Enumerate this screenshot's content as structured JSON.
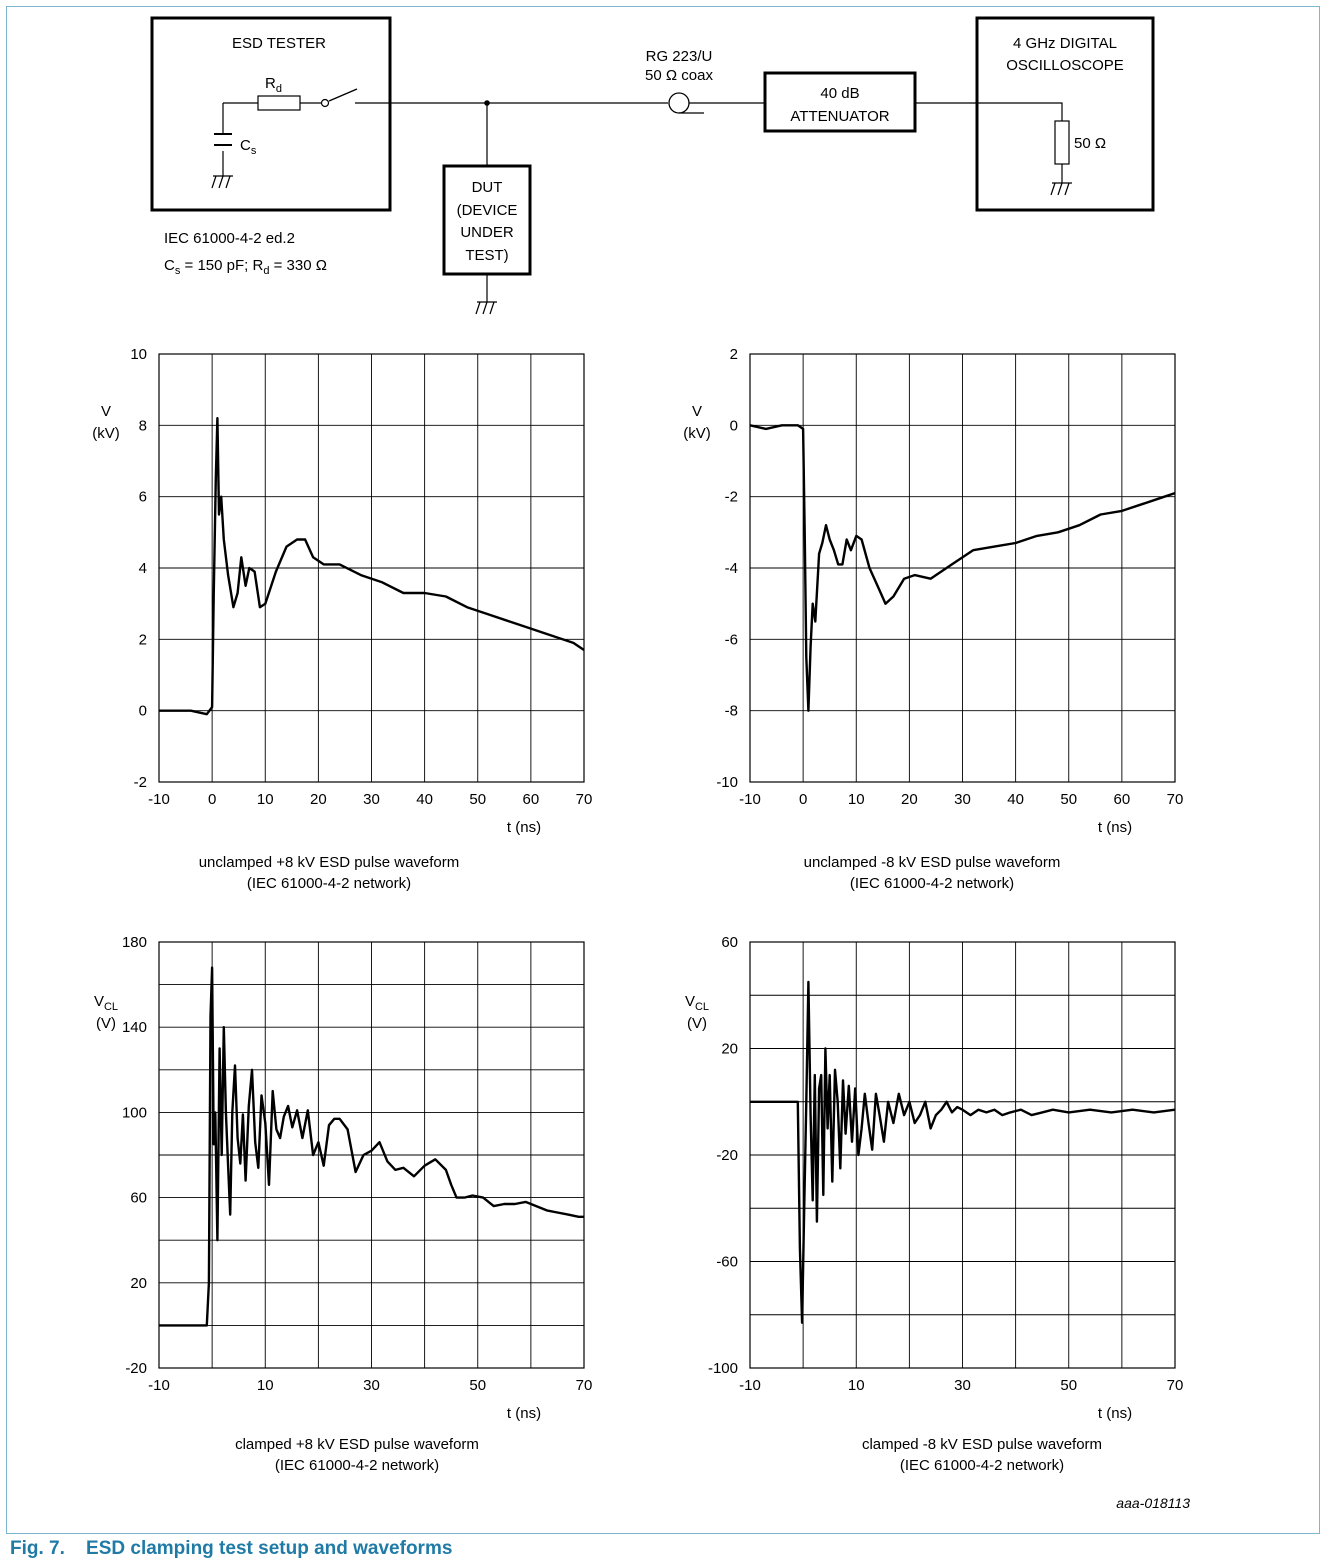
{
  "setup": {
    "tester_title": "ESD TESTER",
    "rd": "R",
    "rd_sub": "d",
    "cs": "C",
    "cs_sub": "s",
    "std_line1": "IEC 61000-4-2 ed.2",
    "std_line2_a": "C",
    "std_line2_a_sub": "s",
    "std_line2_b": " = 150 pF; R",
    "std_line2_b_sub": "d",
    "std_line2_c": " = 330 Ω",
    "dut_lines": [
      "DUT",
      "(DEVICE",
      "UNDER",
      "TEST)"
    ],
    "coax_line1": "RG 223/U",
    "coax_line2": "50 Ω coax",
    "att_line1": "40 dB",
    "att_line2": "ATTENUATOR",
    "scope_line1": "4 GHz DIGITAL",
    "scope_line2": "OSCILLOSCOPE",
    "load": "50 Ω"
  },
  "chart_data": [
    {
      "type": "line",
      "id": "unclamped_pos",
      "ylabel": "V",
      "yunit": "(kV)",
      "xlabel": "t (ns)",
      "xlim": [
        -10,
        70
      ],
      "ylim": [
        -2,
        10
      ],
      "xticks": [
        -10,
        0,
        10,
        20,
        30,
        40,
        50,
        60,
        70
      ],
      "yticks": [
        -2,
        0,
        2,
        4,
        6,
        8,
        10
      ],
      "caption_line1": "unclamped +8 kV ESD pulse waveform",
      "caption_line2": "(IEC 61000-4-2 network)",
      "series": [
        {
          "x": [
            -10,
            -7,
            -4,
            -1,
            0,
            0.3,
            0.7,
            1.0,
            1.3,
            1.7,
            2.2,
            3.0,
            4.0,
            4.8,
            5.5,
            6.3,
            7.0,
            8.0,
            9.0,
            10.0,
            12.0,
            14.0,
            16.0,
            17.5,
            19.0,
            21.0,
            24.0,
            28.0,
            32.0,
            36.0,
            40.0,
            44.0,
            48.0,
            52.0,
            56.0,
            60.0,
            64.0,
            68.0,
            70.0
          ],
          "y": [
            0.0,
            0.0,
            0.0,
            -0.1,
            0.1,
            3.2,
            6.5,
            8.2,
            5.5,
            6.0,
            4.8,
            3.8,
            2.9,
            3.3,
            4.3,
            3.5,
            4.0,
            3.9,
            2.9,
            3.0,
            3.9,
            4.6,
            4.8,
            4.8,
            4.3,
            4.1,
            4.1,
            3.8,
            3.6,
            3.3,
            3.3,
            3.2,
            2.9,
            2.7,
            2.5,
            2.3,
            2.1,
            1.9,
            1.7
          ]
        }
      ]
    },
    {
      "type": "line",
      "id": "unclamped_neg",
      "ylabel": "V",
      "yunit": "(kV)",
      "xlabel": "t (ns)",
      "xlim": [
        -10,
        70
      ],
      "ylim": [
        -10,
        2
      ],
      "xticks": [
        -10,
        0,
        10,
        20,
        30,
        40,
        50,
        60,
        70
      ],
      "yticks": [
        -10,
        -8,
        -6,
        -4,
        -2,
        0,
        2
      ],
      "caption_line1": "unclamped -8 kV ESD pulse waveform",
      "caption_line2": "(IEC 61000-4-2 network)",
      "series": [
        {
          "x": [
            -10,
            -7,
            -4,
            -1,
            0,
            0.3,
            0.6,
            1.0,
            1.4,
            1.8,
            2.3,
            3.0,
            3.6,
            4.3,
            5.0,
            5.8,
            6.6,
            7.4,
            8.2,
            9.0,
            10.0,
            11.0,
            12.5,
            14.0,
            15.5,
            17.0,
            19.0,
            21.0,
            24.0,
            28.0,
            32.0,
            36.0,
            40.0,
            44.0,
            48.0,
            52.0,
            56.0,
            60.0,
            64.0,
            68.0,
            70.0
          ],
          "y": [
            0.0,
            -0.1,
            0.0,
            0.0,
            -0.1,
            -3.0,
            -6.5,
            -8.0,
            -6.2,
            -5.0,
            -5.5,
            -3.6,
            -3.3,
            -2.8,
            -3.2,
            -3.5,
            -3.9,
            -3.9,
            -3.2,
            -3.5,
            -3.1,
            -3.2,
            -4.0,
            -4.5,
            -5.0,
            -4.8,
            -4.3,
            -4.2,
            -4.3,
            -3.9,
            -3.5,
            -3.4,
            -3.3,
            -3.1,
            -3.0,
            -2.8,
            -2.5,
            -2.4,
            -2.2,
            -2.0,
            -1.9
          ]
        }
      ]
    },
    {
      "type": "line",
      "id": "clamped_pos",
      "ylabel": "V",
      "ylabel_sub": "CL",
      "yunit": "(V)",
      "xlabel": "t (ns)",
      "xlim": [
        -10,
        70
      ],
      "ylim": [
        -20,
        180
      ],
      "xticks": [
        -10,
        10,
        30,
        50,
        70
      ],
      "yticks": [
        -20,
        20,
        60,
        100,
        140,
        180
      ],
      "caption_line1": "clamped +8 kV ESD pulse waveform",
      "caption_line2": "(IEC 61000-4-2 network)",
      "series": [
        {
          "x": [
            -10,
            -6,
            -2,
            -1,
            -0.6,
            -0.3,
            0.0,
            0.3,
            0.6,
            1.0,
            1.4,
            1.8,
            2.2,
            2.6,
            3.0,
            3.4,
            3.8,
            4.3,
            4.8,
            5.3,
            5.8,
            6.3,
            6.9,
            7.5,
            8.1,
            8.7,
            9.3,
            10.0,
            10.7,
            11.4,
            12.1,
            12.8,
            13.5,
            14.3,
            15.1,
            16.0,
            17.0,
            18.0,
            19.0,
            20.0,
            21.0,
            22.0,
            23.0,
            24.0,
            25.5,
            27.0,
            28.5,
            30.0,
            31.5,
            33.0,
            34.5,
            36.0,
            38.0,
            40.0,
            42.0,
            44.0,
            45.0,
            46.0,
            47.5,
            49.0,
            51.0,
            53.0,
            55.0,
            57.0,
            59.0,
            61.0,
            63.0,
            65.0,
            67.0,
            69.0,
            70.0
          ],
          "y": [
            0,
            0,
            0,
            0,
            20,
            145,
            168,
            85,
            100,
            40,
            130,
            80,
            140,
            100,
            75,
            52,
            100,
            122,
            88,
            76,
            99,
            68,
            103,
            120,
            86,
            74,
            108,
            95,
            66,
            110,
            92,
            88,
            98,
            103,
            93,
            101,
            88,
            101,
            80,
            86,
            75,
            94,
            97,
            97,
            92,
            72,
            80,
            82,
            86,
            77,
            73,
            74,
            70,
            75,
            78,
            73,
            66,
            60,
            60,
            61,
            60,
            56,
            57,
            57,
            58,
            56,
            54,
            53,
            52,
            51,
            51
          ]
        }
      ]
    },
    {
      "type": "line",
      "id": "clamped_neg",
      "ylabel": "V",
      "ylabel_sub": "CL",
      "yunit": "(V)",
      "xlabel": "t (ns)",
      "xlim": [
        -10,
        70
      ],
      "ylim": [
        -100,
        60
      ],
      "xticks": [
        -10,
        10,
        30,
        50,
        70
      ],
      "yticks": [
        -100,
        -60,
        -20,
        20,
        60
      ],
      "caption_line1": "clamped -8 kV ESD pulse waveform",
      "caption_line2": "(IEC 61000-4-2 network)",
      "series": [
        {
          "x": [
            -10,
            -6,
            -2,
            -1,
            -0.6,
            -0.2,
            0.2,
            0.6,
            1.0,
            1.4,
            1.8,
            2.2,
            2.6,
            3.0,
            3.4,
            3.8,
            4.2,
            4.6,
            5.0,
            5.5,
            6.0,
            6.5,
            7.0,
            7.5,
            8.0,
            8.6,
            9.2,
            9.8,
            10.4,
            11.0,
            11.6,
            12.3,
            13.0,
            13.7,
            14.4,
            15.2,
            16.0,
            17.0,
            18.0,
            19.0,
            20.0,
            21.0,
            22.0,
            23.0,
            24.0,
            25.0,
            26.0,
            27.0,
            28.0,
            29.0,
            30.0,
            31.5,
            33.0,
            34.5,
            36.0,
            37.5,
            39.0,
            41.0,
            43.0,
            45.0,
            47.0,
            50.0,
            54.0,
            58.0,
            62.0,
            66.0,
            70.0
          ],
          "y": [
            0,
            0,
            0,
            0,
            -55,
            -83,
            -40,
            0,
            45,
            -5,
            -37,
            10,
            -45,
            5,
            10,
            -35,
            20,
            -10,
            10,
            -30,
            12,
            0,
            -25,
            8,
            -12,
            6,
            -15,
            5,
            -20,
            -10,
            3,
            -8,
            -18,
            3,
            -5,
            -15,
            0,
            -8,
            3,
            -5,
            0,
            -8,
            -5,
            0,
            -10,
            -5,
            -3,
            0,
            -4,
            -2,
            -3,
            -5,
            -3,
            -4,
            -3,
            -5,
            -4,
            -3,
            -5,
            -4,
            -3,
            -4,
            -3,
            -4,
            -3,
            -4,
            -3
          ]
        }
      ]
    }
  ],
  "code": "aaa-018113",
  "figure": {
    "number": "Fig. 7.",
    "title": "ESD clamping test setup and waveforms"
  }
}
